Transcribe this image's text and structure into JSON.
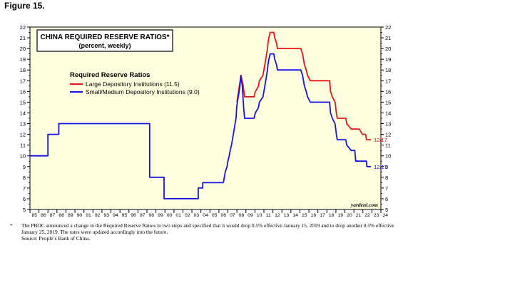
{
  "figure_label": "Figure 15.",
  "chart_data": {
    "type": "line",
    "title": "CHINA REQUIRED RESERVE RATIOS*",
    "subtitle": "(percent, weekly)",
    "legend_title": "Required Reserve Ratios",
    "legend_placement": "top-left",
    "xlabel": "",
    "ylabel": "",
    "xlim": [
      1985,
      2024
    ],
    "ylim": [
      5,
      22
    ],
    "y_ticks": [
      5,
      6,
      7,
      8,
      9,
      10,
      11,
      12,
      13,
      14,
      15,
      16,
      17,
      18,
      19,
      20,
      21,
      22
    ],
    "x_tick_labels": [
      "85",
      "86",
      "87",
      "88",
      "89",
      "90",
      "91",
      "92",
      "93",
      "94",
      "95",
      "96",
      "97",
      "98",
      "99",
      "00",
      "01",
      "02",
      "03",
      "04",
      "05",
      "06",
      "07",
      "08",
      "09",
      "10",
      "11",
      "12",
      "13",
      "14",
      "15",
      "16",
      "17",
      "18",
      "19",
      "20",
      "21",
      "22",
      "23",
      "24"
    ],
    "grid": false,
    "background_color": "#ffffe0",
    "series": [
      {
        "name": "Large Depository Institutions (11.5)",
        "color": "#e8141b",
        "end_label": "12/17",
        "points": [
          [
            2008.0,
            15.0
          ],
          [
            2008.45,
            17.5
          ],
          [
            2008.7,
            16.5
          ],
          [
            2008.85,
            15.5
          ],
          [
            2009.9,
            15.5
          ],
          [
            2010.05,
            16.0
          ],
          [
            2010.4,
            16.5
          ],
          [
            2010.5,
            17.0
          ],
          [
            2010.9,
            17.5
          ],
          [
            2011.0,
            18.0
          ],
          [
            2011.1,
            18.5
          ],
          [
            2011.2,
            19.0
          ],
          [
            2011.3,
            19.5
          ],
          [
            2011.4,
            20.0
          ],
          [
            2011.45,
            20.5
          ],
          [
            2011.55,
            21.0
          ],
          [
            2011.7,
            21.5
          ],
          [
            2012.1,
            21.5
          ],
          [
            2012.2,
            21.0
          ],
          [
            2012.4,
            20.5
          ],
          [
            2012.5,
            20.0
          ],
          [
            2015.1,
            20.0
          ],
          [
            2015.3,
            19.5
          ],
          [
            2015.5,
            18.5
          ],
          [
            2015.7,
            18.0
          ],
          [
            2015.85,
            17.5
          ],
          [
            2016.15,
            17.0
          ],
          [
            2018.3,
            17.0
          ],
          [
            2018.4,
            16.0
          ],
          [
            2018.6,
            15.5
          ],
          [
            2018.9,
            15.0
          ],
          [
            2019.05,
            14.0
          ],
          [
            2019.15,
            13.5
          ],
          [
            2020.1,
            13.5
          ],
          [
            2020.2,
            13.0
          ],
          [
            2020.7,
            12.5
          ],
          [
            2021.6,
            12.5
          ],
          [
            2021.95,
            12.0
          ],
          [
            2022.3,
            12.0
          ],
          [
            2022.4,
            11.5
          ],
          [
            2022.9,
            11.5
          ]
        ]
      },
      {
        "name": "Small/Medium Depository Institutions (9.0)",
        "color": "#1414e8",
        "end_label": "12/17",
        "points": [
          [
            1985.0,
            10.0
          ],
          [
            1987.0,
            10.0
          ],
          [
            1987.0,
            12.0
          ],
          [
            1988.2,
            12.0
          ],
          [
            1988.2,
            13.0
          ],
          [
            1998.3,
            13.0
          ],
          [
            1998.3,
            8.0
          ],
          [
            1999.9,
            8.0
          ],
          [
            1999.9,
            6.0
          ],
          [
            2003.7,
            6.0
          ],
          [
            2003.7,
            7.0
          ],
          [
            2004.2,
            7.0
          ],
          [
            2004.2,
            7.5
          ],
          [
            2006.5,
            7.5
          ],
          [
            2006.6,
            8.0
          ],
          [
            2006.7,
            8.5
          ],
          [
            2006.9,
            9.0
          ],
          [
            2007.0,
            9.5
          ],
          [
            2007.15,
            10.0
          ],
          [
            2007.25,
            10.5
          ],
          [
            2007.4,
            11.0
          ],
          [
            2007.5,
            11.5
          ],
          [
            2007.6,
            12.0
          ],
          [
            2007.7,
            12.5
          ],
          [
            2007.8,
            13.0
          ],
          [
            2007.9,
            13.5
          ],
          [
            2007.97,
            14.5
          ],
          [
            2008.05,
            15.0
          ],
          [
            2008.25,
            16.0
          ],
          [
            2008.4,
            17.0
          ],
          [
            2008.45,
            17.5
          ],
          [
            2008.6,
            16.5
          ],
          [
            2008.75,
            14.5
          ],
          [
            2008.85,
            13.5
          ],
          [
            2009.9,
            13.5
          ],
          [
            2010.05,
            14.0
          ],
          [
            2010.4,
            14.5
          ],
          [
            2010.5,
            15.0
          ],
          [
            2010.9,
            15.5
          ],
          [
            2011.0,
            16.0
          ],
          [
            2011.1,
            16.5
          ],
          [
            2011.2,
            17.0
          ],
          [
            2011.3,
            17.5
          ],
          [
            2011.4,
            18.0
          ],
          [
            2011.45,
            18.5
          ],
          [
            2011.55,
            19.0
          ],
          [
            2011.7,
            19.5
          ],
          [
            2012.1,
            19.5
          ],
          [
            2012.2,
            19.0
          ],
          [
            2012.4,
            18.5
          ],
          [
            2012.5,
            18.0
          ],
          [
            2015.1,
            18.0
          ],
          [
            2015.3,
            17.5
          ],
          [
            2015.5,
            16.5
          ],
          [
            2015.7,
            16.0
          ],
          [
            2015.85,
            15.5
          ],
          [
            2016.15,
            15.0
          ],
          [
            2018.3,
            15.0
          ],
          [
            2018.4,
            14.0
          ],
          [
            2018.6,
            13.5
          ],
          [
            2018.9,
            13.0
          ],
          [
            2019.05,
            12.0
          ],
          [
            2019.15,
            11.5
          ],
          [
            2020.1,
            11.5
          ],
          [
            2020.2,
            11.0
          ],
          [
            2020.7,
            10.5
          ],
          [
            2021.1,
            10.5
          ],
          [
            2021.2,
            9.5
          ],
          [
            2022.4,
            9.5
          ],
          [
            2022.45,
            9.0
          ],
          [
            2022.9,
            9.0
          ]
        ]
      }
    ],
    "watermark": "yardeni.com"
  },
  "footnote": {
    "marker": "*",
    "text": "The PBOC announced a change in the Required Reserve Ratios in two steps and specified that it would drop 0.5% effective January 15, 2019 and to drop another 0.5% effective January 25, 2019. The rates were updated accordingly into the future.",
    "source": "Source: People’s Bank of China."
  }
}
